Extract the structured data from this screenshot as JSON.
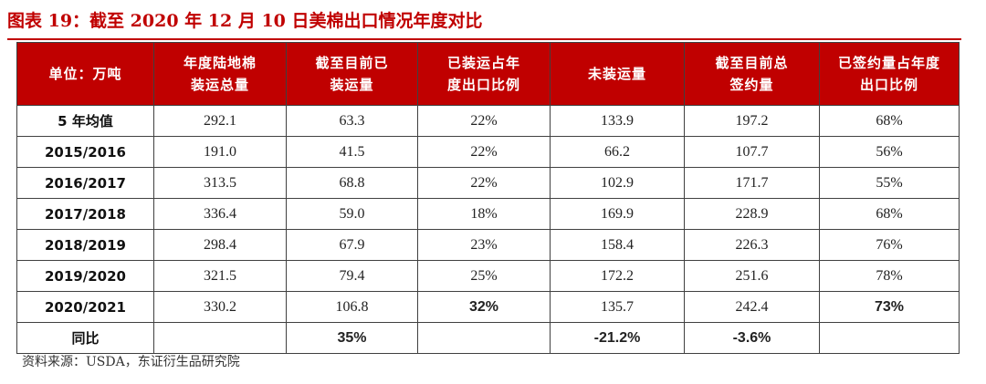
{
  "caption": "图表 19：截至 2020 年 12 月 10 日美棉出口情况年度对比",
  "table": {
    "headers": [
      [
        "单位：万吨"
      ],
      [
        "年度陆地棉",
        "装运总量"
      ],
      [
        "截至目前已",
        "装运量"
      ],
      [
        "已装运占年",
        "度出口比例"
      ],
      [
        "未装运量"
      ],
      [
        "截至目前总",
        "签约量"
      ],
      [
        "已签约量占年度",
        "出口比例"
      ]
    ],
    "rows": [
      [
        "5 年均值",
        "292.1",
        "63.3",
        "22%",
        "133.9",
        "197.2",
        "68%"
      ],
      [
        "2015/2016",
        "191.0",
        "41.5",
        "22%",
        "66.2",
        "107.7",
        "56%"
      ],
      [
        "2016/2017",
        "313.5",
        "68.8",
        "22%",
        "102.9",
        "171.7",
        "55%"
      ],
      [
        "2017/2018",
        "336.4",
        "59.0",
        "18%",
        "169.9",
        "228.9",
        "68%"
      ],
      [
        "2018/2019",
        "298.4",
        "67.9",
        "23%",
        "158.4",
        "226.3",
        "76%"
      ],
      [
        "2019/2020",
        "321.5",
        "79.4",
        "25%",
        "172.2",
        "251.6",
        "78%"
      ],
      [
        "2020/2021",
        "330.2",
        "106.8",
        "32%",
        "135.7",
        "242.4",
        "73%"
      ],
      [
        "同比",
        "",
        "35%",
        "",
        "-21.2%",
        "-3.6%",
        ""
      ]
    ]
  },
  "source": "资料来源：USDA，东证衍生品研究院"
}
